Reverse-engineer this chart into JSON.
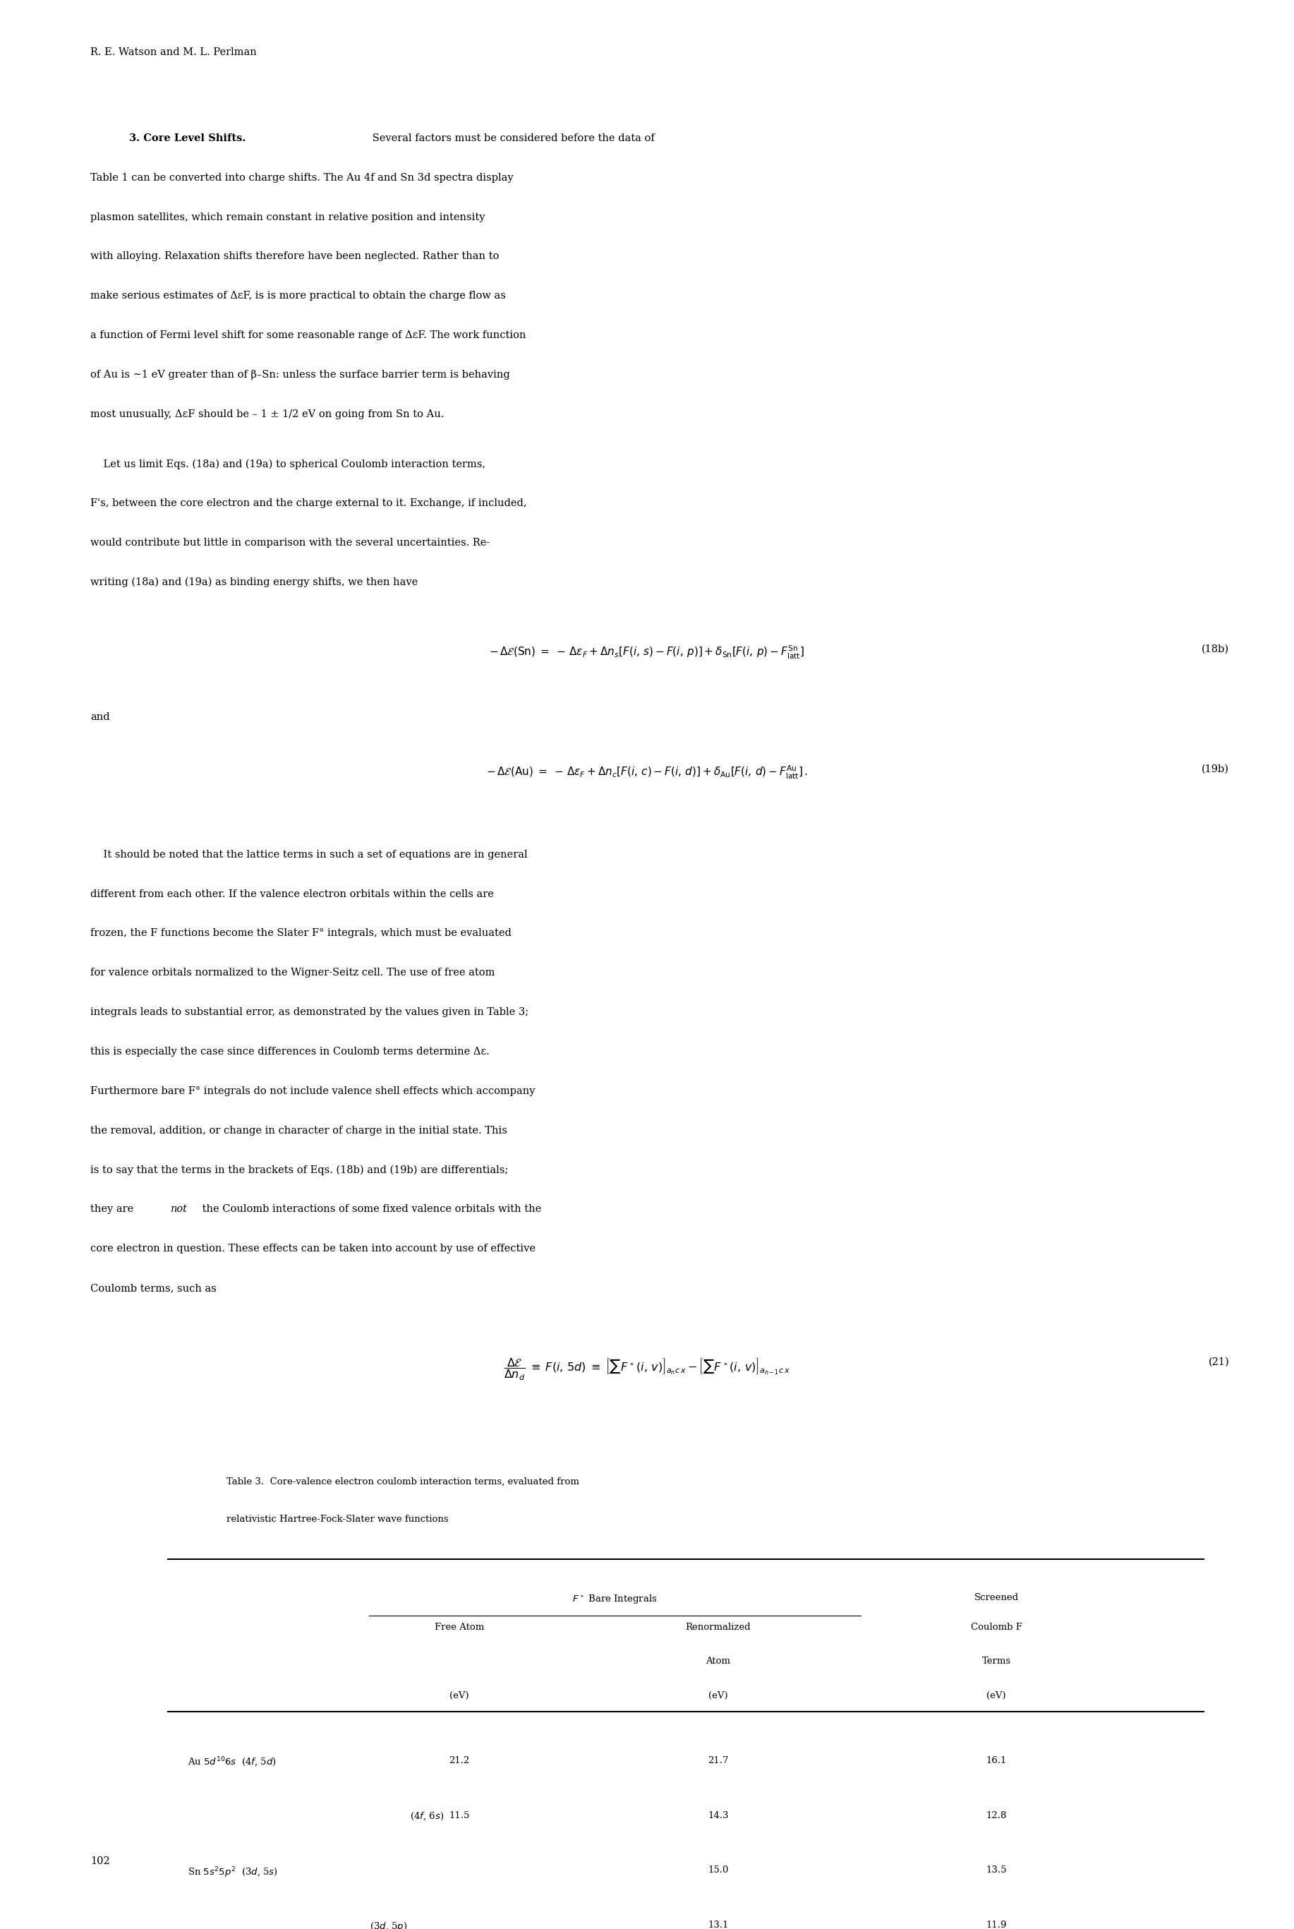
{
  "page_width": 18.34,
  "page_height": 27.33,
  "background_color": "#ffffff",
  "header_text": "R. E. Watson and M. L. Perlman",
  "footer_text": "102",
  "text_color": "#000000",
  "table_caption_line1": "Table 3.  Core-valence electron coulomb interaction terms, evaluated from",
  "table_caption_line2": "relativistic Hartree-Fock-Slater wave functions",
  "col_header1": "F° Bare Integrals",
  "col_header2": "Screened",
  "col_subheader1": "Free Atom",
  "col_subheader2": "Renormalized Atom",
  "col_subheader3": "Coulomb F Terms",
  "col_unit1": "(eV)",
  "col_unit2": "(eV)",
  "col_unit3": "(eV)",
  "row1_val1": "21.2",
  "row1_val2": "21.7",
  "row1_val3": "16.1",
  "row2_val1": "11.5",
  "row2_val2": "14.3",
  "row2_val3": "12.8",
  "row3_val1": "",
  "row3_val2": "15.0",
  "row3_val3": "13.5",
  "row4_val1": "",
  "row4_val2": "13.1",
  "row4_val3": "11.9"
}
